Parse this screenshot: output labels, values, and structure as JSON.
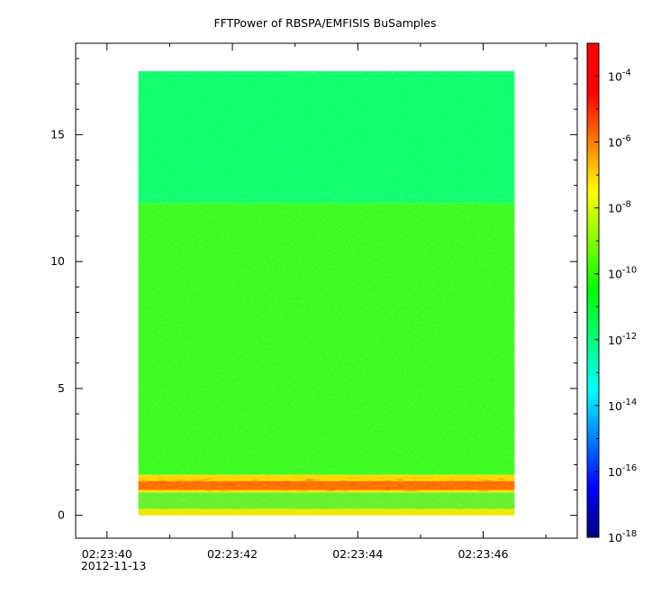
{
  "chart_data": {
    "type": "heatmap",
    "title": "FFTPower of RBSPA/EMFISIS  BuSamples",
    "xlabel": "",
    "ylabel": "",
    "x_tick_labels": [
      "02:23:40",
      "02:23:42",
      "02:23:44",
      "02:23:46"
    ],
    "x_date_label": "2012-11-13",
    "xlim": [
      "02:23:39.5",
      "02:23:47.5"
    ],
    "data_time_range": [
      "02:23:40.5",
      "02:23:46.5"
    ],
    "y_ticks": [
      0,
      5,
      10,
      15
    ],
    "y_tick_labels": [
      "0",
      "5",
      "10",
      "15"
    ],
    "ylim": [
      -0.9,
      18.6
    ],
    "data_y_range": [
      0,
      17.5
    ],
    "colorbar": {
      "scale": "log",
      "range": [
        1e-18,
        0.001
      ],
      "tick_exponents": [
        -18,
        -16,
        -14,
        -12,
        -10,
        -8,
        -6,
        -4
      ],
      "tick_base": "10",
      "colormap": [
        "#00007f",
        "#0000ff",
        "#0080ff",
        "#00ffff",
        "#00ff80",
        "#00ff00",
        "#80ff00",
        "#ffff00",
        "#ff8000",
        "#ff0000",
        "#ff0000"
      ]
    },
    "bands": [
      {
        "y_range": [
          12.3,
          17.5
        ],
        "log_power": -12.3,
        "color": "#10ff70"
      },
      {
        "y_range": [
          1.6,
          12.3
        ],
        "log_power": -10.3,
        "color": "#3cfc22"
      },
      {
        "y_range": [
          1.35,
          1.6
        ],
        "log_power": -8.0,
        "color": "#ffd800"
      },
      {
        "y_range": [
          1.0,
          1.35
        ],
        "log_power": -6.0,
        "color": "#ff7000"
      },
      {
        "y_range": [
          0.9,
          1.0
        ],
        "log_power": -7.5,
        "color": "#ffe400"
      },
      {
        "y_range": [
          0.25,
          0.9
        ],
        "log_power": -10.0,
        "color": "#66f02c"
      },
      {
        "y_range": [
          0.0,
          0.25
        ],
        "log_power": -8.3,
        "color": "#f0e800"
      }
    ]
  }
}
